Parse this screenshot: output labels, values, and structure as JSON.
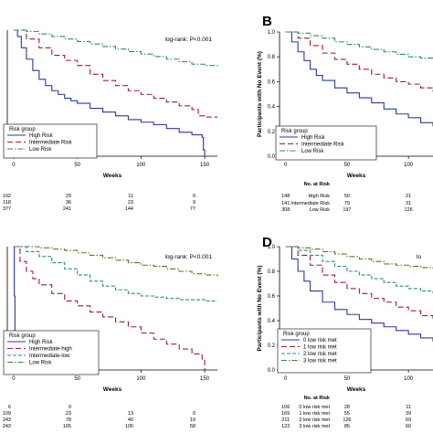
{
  "chart_data": [
    {
      "type": "line",
      "letter": "",
      "logrank": "log-rank: P<0.001",
      "xlabel": "Weeks",
      "ylabel": "",
      "xlim": [
        -5,
        160
      ],
      "ylim": [
        0,
        1
      ],
      "xticks": [
        "0",
        "50",
        "100",
        "150"
      ],
      "xtick_values": [
        0,
        50,
        100,
        150
      ],
      "yticks": [],
      "legend": {
        "title": "Risk group",
        "placement": "bottom-left"
      },
      "series": [
        {
          "name": "High Risk",
          "color": "#2b3a9c",
          "dash": "solid",
          "x": [
            0,
            3,
            6,
            10,
            15,
            20,
            25,
            30,
            35,
            40,
            45,
            50,
            60,
            70,
            80,
            90,
            100,
            110,
            120,
            130,
            140,
            148,
            149,
            150
          ],
          "y": [
            1,
            0.95,
            0.86,
            0.77,
            0.68,
            0.61,
            0.56,
            0.52,
            0.49,
            0.46,
            0.44,
            0.42,
            0.38,
            0.35,
            0.32,
            0.29,
            0.27,
            0.25,
            0.22,
            0.19,
            0.17,
            0.15,
            0.05,
            0.0
          ]
        },
        {
          "name": "Intermediate Risk",
          "color": "#9c1f2b",
          "dash": "6,3",
          "x": [
            0,
            10,
            20,
            30,
            40,
            50,
            60,
            70,
            80,
            90,
            100,
            110,
            120,
            130,
            140,
            145,
            150,
            160
          ],
          "y": [
            1,
            0.93,
            0.86,
            0.8,
            0.76,
            0.72,
            0.65,
            0.6,
            0.56,
            0.52,
            0.49,
            0.46,
            0.43,
            0.4,
            0.37,
            0.32,
            0.31,
            0.31
          ]
        },
        {
          "name": "Low Risk",
          "color": "#2e8b57",
          "dash": "6,2,1.5,2",
          "x": [
            0,
            10,
            20,
            30,
            40,
            50,
            60,
            70,
            80,
            90,
            100,
            110,
            120,
            130,
            140,
            150,
            160
          ],
          "y": [
            1,
            0.99,
            0.97,
            0.95,
            0.93,
            0.91,
            0.89,
            0.87,
            0.85,
            0.83,
            0.81,
            0.79,
            0.77,
            0.75,
            0.73,
            0.72,
            0.71
          ]
        }
      ],
      "risk_table": {
        "header": "",
        "rows": [
          {
            "label": "",
            "values": [
              "102",
              "29",
              "11",
              "0"
            ]
          },
          {
            "label": "",
            "values": [
              "118",
              "36",
              "23",
              "9"
            ]
          },
          {
            "label": "",
            "values": [
              "377",
              "241",
              "144",
              "77"
            ]
          }
        ]
      }
    },
    {
      "type": "line",
      "letter": "B",
      "logrank": "",
      "xlabel": "Weeks",
      "ylabel": "Participants with No Event (%)",
      "xlim": [
        -5,
        120
      ],
      "ylim": [
        0,
        1
      ],
      "xticks": [
        "0",
        "50",
        "100"
      ],
      "xtick_values": [
        0,
        50,
        100
      ],
      "yticks": [
        "0.0",
        "0.2",
        "0.4",
        "0.6",
        "0.8",
        "1.0"
      ],
      "ytick_values": [
        0,
        0.2,
        0.4,
        0.6,
        0.8,
        1.0
      ],
      "legend": {
        "title": "Risk group",
        "placement": "bottom-left"
      },
      "series": [
        {
          "name": "High Risk",
          "color": "#2b3a9c",
          "dash": "solid",
          "x": [
            0,
            5,
            10,
            15,
            20,
            25,
            30,
            40,
            50,
            60,
            70,
            80,
            90,
            100,
            110,
            120
          ],
          "y": [
            1,
            0.92,
            0.84,
            0.77,
            0.7,
            0.65,
            0.61,
            0.55,
            0.51,
            0.47,
            0.43,
            0.38,
            0.34,
            0.31,
            0.27,
            0.24
          ]
        },
        {
          "name": "Intermediate Risk",
          "color": "#9c1f2b",
          "dash": "6,3",
          "x": [
            0,
            10,
            20,
            30,
            40,
            50,
            60,
            70,
            80,
            90,
            100,
            110,
            120
          ],
          "y": [
            1,
            0.95,
            0.89,
            0.83,
            0.78,
            0.74,
            0.7,
            0.66,
            0.63,
            0.6,
            0.58,
            0.55,
            0.52
          ]
        },
        {
          "name": "Low Risk",
          "color": "#2e8b57",
          "dash": "6,2,1.5,2",
          "x": [
            0,
            10,
            20,
            30,
            40,
            50,
            60,
            70,
            80,
            90,
            100,
            110,
            120
          ],
          "y": [
            1,
            0.99,
            0.97,
            0.95,
            0.92,
            0.9,
            0.88,
            0.86,
            0.84,
            0.82,
            0.8,
            0.79,
            0.78
          ]
        }
      ],
      "risk_table": {
        "header": "No. at Risk",
        "rows": [
          {
            "label": "High Risk",
            "values": [
              "148",
              "50",
              "21"
            ]
          },
          {
            "label": "Intermediate Risk",
            "values": [
              "141",
              "79",
              "31"
            ]
          },
          {
            "label": "Low Risk",
            "values": [
              "308",
              "197",
              "126"
            ]
          }
        ]
      }
    },
    {
      "type": "line",
      "letter": "",
      "logrank": "log-rank: P<0.001",
      "xlabel": "Weeks",
      "ylabel": "",
      "xlim": [
        -5,
        160
      ],
      "ylim": [
        0,
        1
      ],
      "xticks": [
        "0",
        "50",
        "100",
        "150"
      ],
      "xtick_values": [
        0,
        50,
        100,
        150
      ],
      "yticks": [],
      "legend": {
        "title": "Risk group",
        "placement": "bottom-left"
      },
      "series": [
        {
          "name": "High Risk",
          "color": "#2b3a9c",
          "dash": "solid",
          "x": [
            0,
            0.5,
            1,
            1.5,
            2
          ],
          "y": [
            1,
            0.6,
            0.3,
            0.05,
            0.0
          ]
        },
        {
          "name": "Intermediate-high",
          "color": "#9c1f2b",
          "dash": "6,3",
          "x": [
            0,
            5,
            10,
            15,
            20,
            30,
            40,
            50,
            60,
            70,
            80,
            90,
            100,
            110,
            120,
            130,
            140,
            148,
            150
          ],
          "y": [
            1,
            0.88,
            0.8,
            0.74,
            0.69,
            0.62,
            0.56,
            0.52,
            0.47,
            0.43,
            0.39,
            0.35,
            0.3,
            0.25,
            0.21,
            0.17,
            0.13,
            0.08,
            0.0
          ]
        },
        {
          "name": "Intermediate-low",
          "color": "#2a8c8c",
          "dash": "4,2",
          "x": [
            0,
            10,
            20,
            30,
            40,
            50,
            60,
            70,
            80,
            90,
            100,
            110,
            120,
            130,
            140,
            150,
            160
          ],
          "y": [
            1,
            0.96,
            0.92,
            0.87,
            0.82,
            0.77,
            0.72,
            0.68,
            0.65,
            0.62,
            0.6,
            0.59,
            0.58,
            0.57,
            0.57,
            0.56,
            0.56
          ]
        },
        {
          "name": "Low Risk",
          "color": "#557a1f",
          "dash": "6,2,1.5,2",
          "x": [
            0,
            10,
            20,
            30,
            40,
            50,
            60,
            70,
            80,
            90,
            100,
            110,
            120,
            130,
            140,
            150,
            160
          ],
          "y": [
            1,
            1,
            0.99,
            0.98,
            0.97,
            0.95,
            0.93,
            0.91,
            0.89,
            0.87,
            0.85,
            0.84,
            0.82,
            0.8,
            0.78,
            0.77,
            0.76
          ]
        }
      ],
      "risk_table": {
        "header": "",
        "rows": [
          {
            "label": "",
            "values": [
              "6",
              "0",
              "",
              ""
            ]
          },
          {
            "label": "",
            "values": [
              "109",
              "23",
              "13",
              "0"
            ]
          },
          {
            "label": "",
            "values": [
              "243",
              "78",
              "40",
              "19"
            ]
          },
          {
            "label": "",
            "values": [
              "243",
              "165",
              "106",
              "58"
            ]
          }
        ]
      }
    },
    {
      "type": "line",
      "letter": "D",
      "logrank": "lo",
      "xlabel": "Weeks",
      "ylabel": "Participants with No Event (%)",
      "xlim": [
        -5,
        120
      ],
      "ylim": [
        0,
        1
      ],
      "xticks": [
        "0",
        "50",
        "100"
      ],
      "xtick_values": [
        0,
        50,
        100
      ],
      "yticks": [
        "0.0",
        "0.2",
        "0.4",
        "0.6",
        "0.8",
        "1.0"
      ],
      "ytick_values": [
        0,
        0.2,
        0.4,
        0.6,
        0.8,
        1.0
      ],
      "legend": {
        "title": "Risk group",
        "placement": "bottom-left"
      },
      "series": [
        {
          "name": "0 low risk met",
          "color": "#2b3a9c",
          "dash": "solid",
          "x": [
            0,
            5,
            10,
            15,
            20,
            30,
            40,
            50,
            60,
            70,
            80,
            90,
            100,
            110,
            120
          ],
          "y": [
            1,
            0.9,
            0.8,
            0.72,
            0.64,
            0.55,
            0.49,
            0.45,
            0.41,
            0.38,
            0.35,
            0.32,
            0.29,
            0.26,
            0.23
          ]
        },
        {
          "name": "1 low risk met",
          "color": "#9c1f2b",
          "dash": "6,3",
          "x": [
            0,
            10,
            20,
            30,
            40,
            50,
            60,
            70,
            80,
            90,
            100,
            110,
            120
          ],
          "y": [
            1,
            0.93,
            0.85,
            0.77,
            0.71,
            0.66,
            0.62,
            0.58,
            0.55,
            0.51,
            0.48,
            0.44,
            0.41
          ]
        },
        {
          "name": "2 low risk met",
          "color": "#2a8c8c",
          "dash": "4,2",
          "x": [
            0,
            10,
            20,
            30,
            40,
            50,
            60,
            70,
            80,
            90,
            100,
            110,
            120
          ],
          "y": [
            1,
            0.97,
            0.93,
            0.88,
            0.84,
            0.8,
            0.77,
            0.74,
            0.71,
            0.68,
            0.66,
            0.64,
            0.62
          ]
        },
        {
          "name": "3 low risk met",
          "color": "#557a1f",
          "dash": "6,2,1.5,2",
          "x": [
            0,
            10,
            20,
            30,
            40,
            50,
            60,
            70,
            80,
            90,
            100,
            110,
            120
          ],
          "y": [
            1,
            0.99,
            0.98,
            0.96,
            0.94,
            0.92,
            0.9,
            0.88,
            0.86,
            0.85,
            0.84,
            0.83,
            0.82
          ]
        }
      ],
      "risk_table": {
        "header": "No. at Risk",
        "rows": [
          {
            "label": "0 low risk met",
            "values": [
              "106",
              "28",
              "11"
            ]
          },
          {
            "label": "1 low risk met",
            "values": [
              "165",
              "55",
              "39"
            ]
          },
          {
            "label": "2 low risk met",
            "values": [
              "211",
              "126",
              "69"
            ]
          },
          {
            "label": "3 low risk met",
            "values": [
              "122",
              "85",
              "60"
            ]
          }
        ]
      }
    }
  ]
}
